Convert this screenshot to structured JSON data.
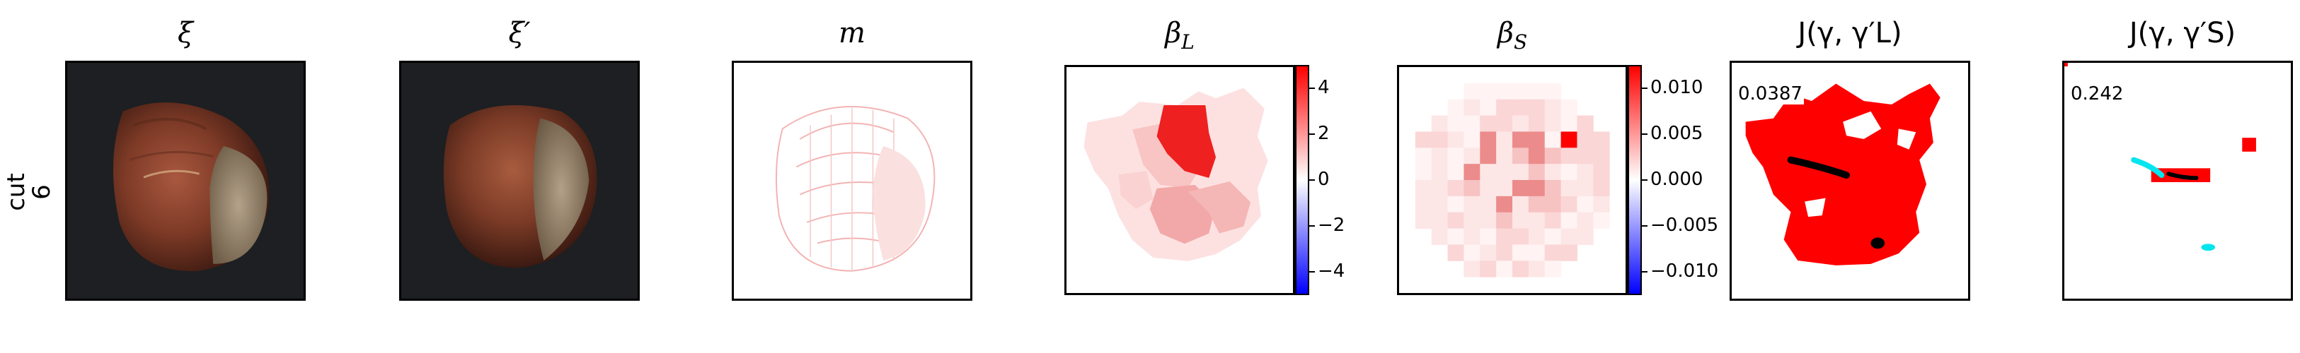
{
  "row_label": {
    "line1": "cut",
    "line2": "6"
  },
  "panels": {
    "xi": {
      "title": "ξ"
    },
    "xi_prime": {
      "title": "ξ′"
    },
    "m": {
      "title": "m"
    },
    "beta_L": {
      "title": "βL",
      "title_main": "β",
      "title_sub": "L"
    },
    "beta_S": {
      "title": "βS",
      "title_main": "β",
      "title_sub": "S"
    },
    "J_L": {
      "title": "J(γ, γ′L)",
      "score": "0.0387"
    },
    "J_S": {
      "title": "J(γ, γ′S)",
      "score": "0.242"
    }
  },
  "colorbar_L": {
    "ticks": [
      "4",
      "2",
      "0",
      "−2",
      "−4"
    ],
    "colormap": "bwr"
  },
  "colorbar_S": {
    "ticks": [
      "0.010",
      "0.005",
      "0.000",
      "−0.005",
      "−0.010"
    ],
    "colormap": "bwr"
  },
  "colors": {
    "red": "#ff0000",
    "blue": "#0000ff",
    "cyan": "#00e5ee",
    "black": "#000000",
    "dark_bg": "#1d1f22"
  }
}
